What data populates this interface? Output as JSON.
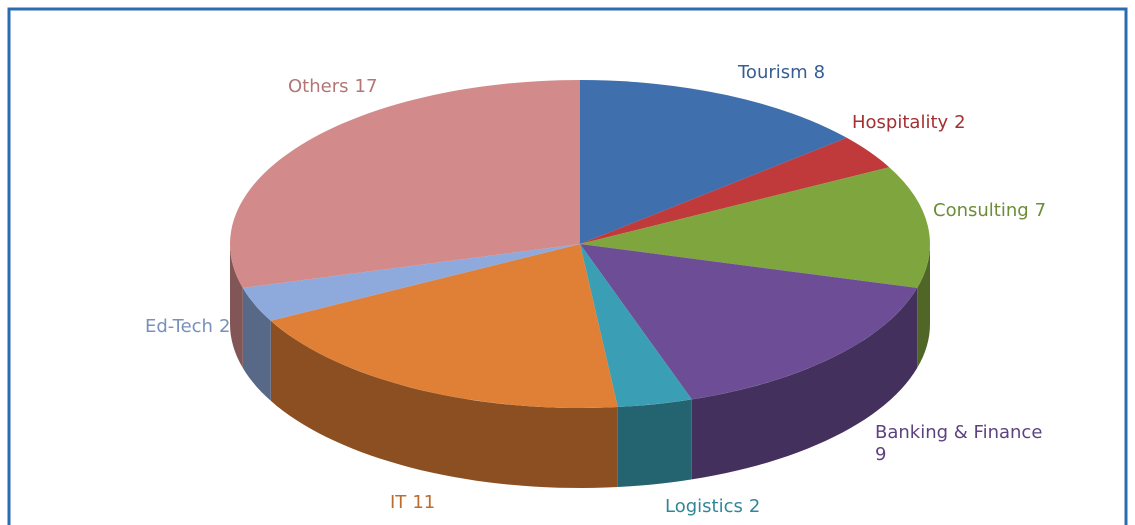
{
  "chart_data": {
    "type": "pie3d",
    "categories": [
      "Tourism",
      "Hospitality",
      "Consulting",
      "Banking & Finance",
      "Logistics",
      "IT",
      "Ed-Tech",
      "Others"
    ],
    "values": [
      8,
      2,
      7,
      9,
      2,
      11,
      2,
      17
    ],
    "colors": [
      "#3f6fad",
      "#c0393b",
      "#7fa53f",
      "#6d4e96",
      "#3a9fb5",
      "#e07f36",
      "#8ea9dc",
      "#d28a8a"
    ]
  }
}
